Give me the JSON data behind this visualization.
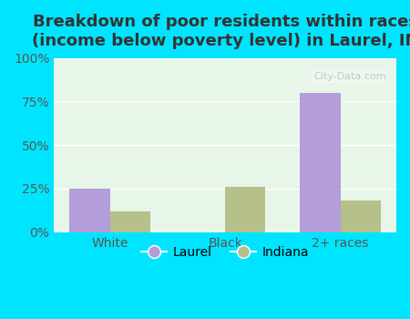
{
  "title": "Breakdown of poor residents within races\n(income below poverty level) in Laurel, IN",
  "categories": [
    "White",
    "Black",
    "2+ races"
  ],
  "laurel_values": [
    0.25,
    0.0,
    0.8
  ],
  "indiana_values": [
    0.12,
    0.26,
    0.18
  ],
  "laurel_color": "#b39ddb",
  "indiana_color": "#b5c08b",
  "bg_outer": "#00e5ff",
  "bg_plot": "#e8f5e9",
  "ylim": [
    0,
    1.0
  ],
  "yticks": [
    0,
    0.25,
    0.5,
    0.75,
    1.0
  ],
  "ytick_labels": [
    "0%",
    "25%",
    "50%",
    "75%",
    "100%"
  ],
  "title_fontsize": 13,
  "tick_fontsize": 10,
  "legend_fontsize": 10,
  "bar_width": 0.35,
  "watermark": "City-Data.com"
}
